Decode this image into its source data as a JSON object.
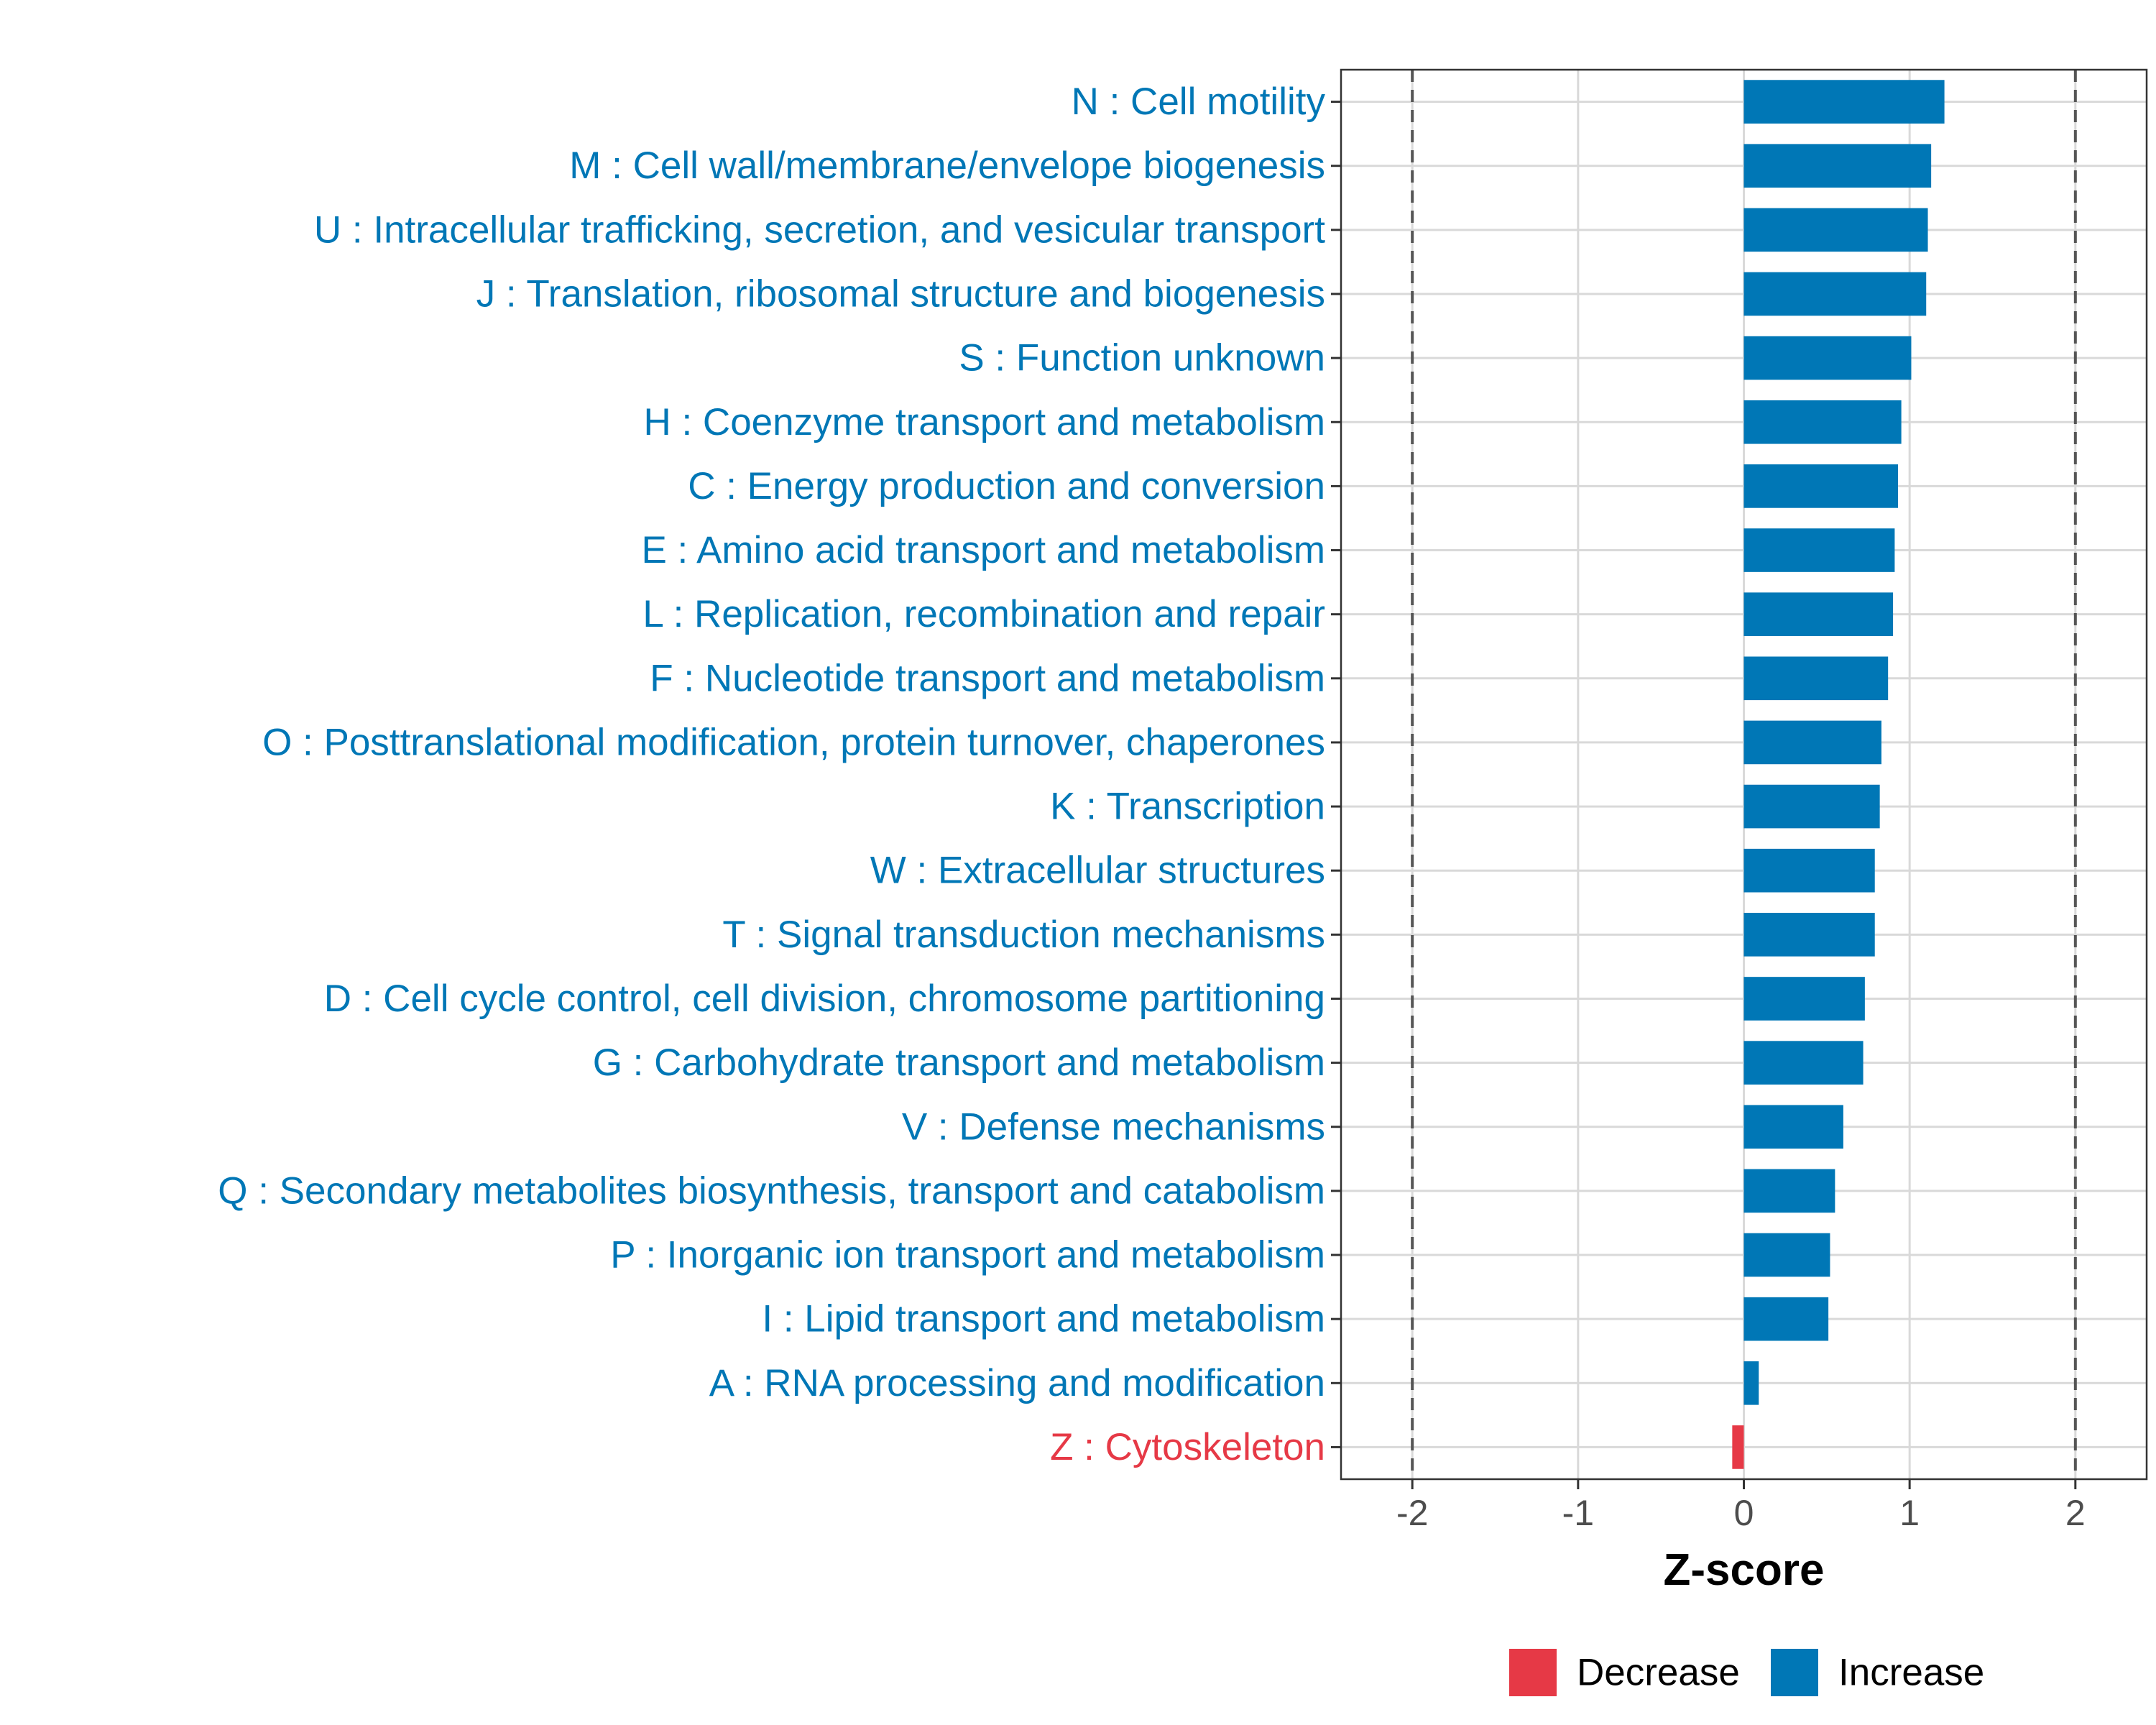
{
  "chart_data": {
    "type": "bar",
    "orientation": "horizontal",
    "title": "",
    "xlabel": "Z-score",
    "ylabel": "",
    "xlim": [
      -2.43,
      2.43
    ],
    "xticks": [
      -2,
      -1,
      0,
      1,
      2
    ],
    "xtick_labels": [
      "-2",
      "-1",
      "0",
      "1",
      "2"
    ],
    "reference_lines": [
      -2,
      2
    ],
    "grid": true,
    "colors": {
      "Increase": "#0077b6",
      "Decrease": "#e63946",
      "grid": "#d9d9d9",
      "reference": "#555555",
      "tick_text": "#4d4d4d",
      "axis_title": "#000000"
    },
    "legend": {
      "position": "bottom",
      "entries": [
        {
          "label": "Decrease",
          "color": "#e63946"
        },
        {
          "label": "Increase",
          "color": "#0077b6"
        }
      ]
    },
    "categories": [
      "N : Cell motility",
      "M : Cell wall/membrane/envelope biogenesis",
      "U : Intracellular trafficking, secretion, and vesicular transport",
      "J : Translation, ribosomal structure and biogenesis",
      "S : Function unknown",
      "H : Coenzyme transport and metabolism",
      "C : Energy production and conversion",
      "E : Amino acid transport and metabolism",
      "L : Replication, recombination and repair",
      "F : Nucleotide transport and metabolism",
      "O : Posttranslational modification, protein turnover, chaperones",
      "K : Transcription",
      "W : Extracellular structures",
      "T : Signal transduction mechanisms",
      "D : Cell cycle control, cell division, chromosome partitioning",
      "G : Carbohydrate transport and metabolism",
      "V : Defense mechanisms",
      "Q : Secondary metabolites biosynthesis, transport and catabolism",
      "P : Inorganic ion transport and metabolism",
      "I : Lipid transport and metabolism",
      "A : RNA processing and modification",
      "Z : Cytoskeleton"
    ],
    "values": [
      1.21,
      1.13,
      1.11,
      1.1,
      1.01,
      0.95,
      0.93,
      0.91,
      0.9,
      0.87,
      0.83,
      0.82,
      0.79,
      0.79,
      0.73,
      0.72,
      0.6,
      0.55,
      0.52,
      0.51,
      0.09,
      -0.07
    ],
    "direction": [
      "Increase",
      "Increase",
      "Increase",
      "Increase",
      "Increase",
      "Increase",
      "Increase",
      "Increase",
      "Increase",
      "Increase",
      "Increase",
      "Increase",
      "Increase",
      "Increase",
      "Increase",
      "Increase",
      "Increase",
      "Increase",
      "Increase",
      "Increase",
      "Increase",
      "Decrease"
    ]
  }
}
